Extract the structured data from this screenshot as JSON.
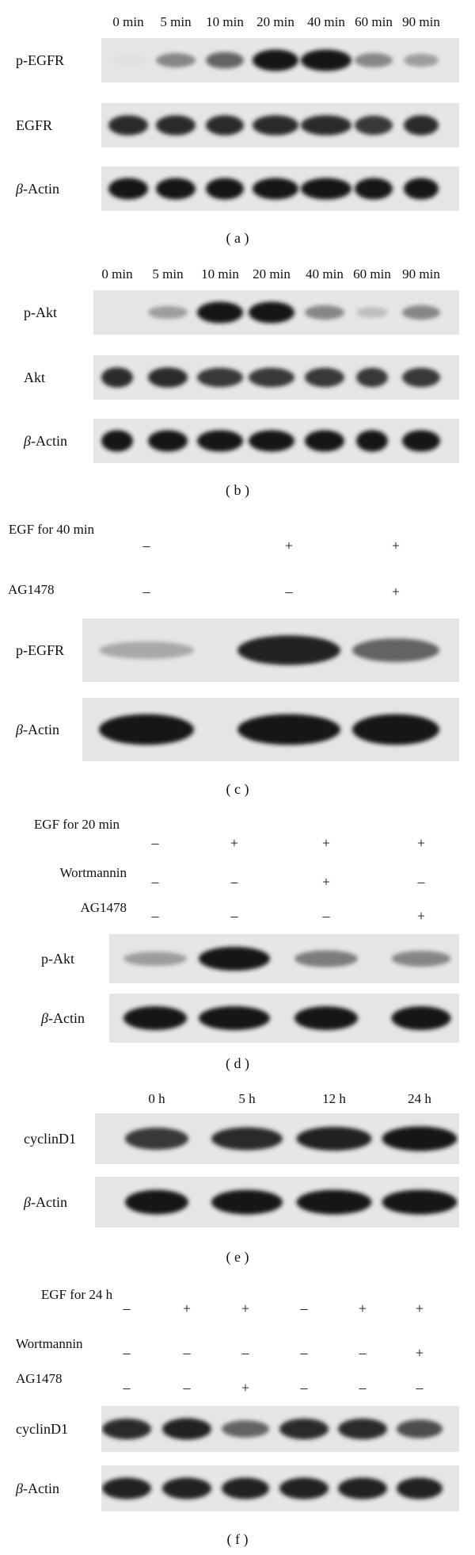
{
  "panels": [
    {
      "caption": "( a )",
      "lanes": [
        "0 min",
        "5 min",
        "10 min",
        "20 min",
        "40 min",
        "60 min",
        "90 min"
      ],
      "rows": [
        {
          "label": "p-EGFR",
          "intensity": [
            0.05,
            0.45,
            0.6,
            0.95,
            0.95,
            0.45,
            0.35
          ]
        },
        {
          "label": "EGFR",
          "intensity": [
            0.85,
            0.85,
            0.85,
            0.85,
            0.85,
            0.8,
            0.85
          ]
        },
        {
          "label_prefix": "β",
          "label": "-Actin",
          "intensity": [
            0.95,
            0.95,
            0.95,
            0.95,
            0.95,
            0.95,
            0.95
          ]
        }
      ]
    },
    {
      "caption": "( b )",
      "lanes": [
        "0 min",
        "5 min",
        "10 min",
        "20 min",
        "40 min",
        "60 min",
        "90 min"
      ],
      "rows": [
        {
          "label": "p-Akt",
          "intensity": [
            0.0,
            0.35,
            0.95,
            0.95,
            0.45,
            0.2,
            0.45
          ]
        },
        {
          "label": "Akt",
          "intensity": [
            0.85,
            0.85,
            0.8,
            0.8,
            0.8,
            0.8,
            0.8
          ]
        },
        {
          "label_prefix": "β",
          "label": "-Actin",
          "intensity": [
            0.95,
            0.95,
            0.95,
            0.95,
            0.95,
            0.95,
            0.95
          ]
        }
      ]
    },
    {
      "caption": "( c )",
      "treatments": [
        {
          "label": "EGF for 40 min",
          "signs": [
            "–",
            "+",
            "+"
          ]
        },
        {
          "label": "AG1478",
          "signs": [
            "–",
            "–",
            "+"
          ]
        }
      ],
      "rows": [
        {
          "label": "p-EGFR",
          "intensity": [
            0.3,
            0.9,
            0.6
          ]
        },
        {
          "label_prefix": "β",
          "label": "-Actin",
          "intensity": [
            0.95,
            0.95,
            0.95
          ]
        }
      ]
    },
    {
      "caption": "( d )",
      "treatments": [
        {
          "label": "EGF for 20 min",
          "signs": [
            "–",
            "+",
            "+",
            "+"
          ]
        },
        {
          "label": "Wortmannin",
          "signs": [
            "–",
            "–",
            "+",
            "–"
          ]
        },
        {
          "label": "AG1478",
          "signs": [
            "–",
            "–",
            "–",
            "+"
          ]
        }
      ],
      "rows": [
        {
          "label": "p-Akt",
          "intensity": [
            0.35,
            0.95,
            0.5,
            0.45
          ]
        },
        {
          "label_prefix": "β",
          "label": "-Actin",
          "intensity": [
            0.95,
            0.95,
            0.95,
            0.95
          ]
        }
      ]
    },
    {
      "caption": "( e )",
      "lanes": [
        "0 h",
        "5 h",
        "12 h",
        "24 h"
      ],
      "rows": [
        {
          "label": "cyclinD1",
          "intensity": [
            0.8,
            0.85,
            0.9,
            0.95
          ]
        },
        {
          "label_prefix": "β",
          "label": "-Actin",
          "intensity": [
            0.95,
            0.95,
            0.95,
            0.95
          ]
        }
      ]
    },
    {
      "caption": "( f )",
      "treatments": [
        {
          "label": "EGF for 24 h",
          "signs": [
            "–",
            "+",
            "+",
            "–",
            "+",
            "+"
          ]
        },
        {
          "label": "Wortmannin",
          "signs": [
            "–",
            "–",
            "–",
            "–",
            "–",
            "+"
          ]
        },
        {
          "label": "AG1478",
          "signs": [
            "–",
            "–",
            "+",
            "–",
            "–",
            "–"
          ]
        }
      ],
      "rows": [
        {
          "label": "cyclinD1",
          "intensity": [
            0.85,
            0.9,
            0.6,
            0.85,
            0.85,
            0.7
          ]
        },
        {
          "label_prefix": "β",
          "label": "-Actin",
          "intensity": [
            0.9,
            0.9,
            0.9,
            0.9,
            0.9,
            0.9
          ]
        }
      ]
    }
  ]
}
